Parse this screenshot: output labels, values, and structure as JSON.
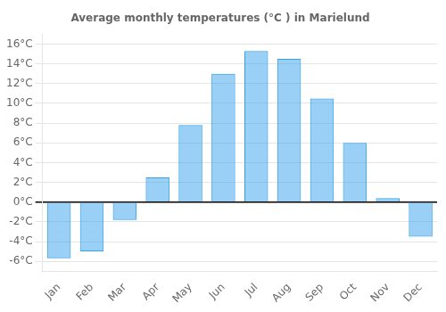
{
  "chart_data": {
    "type": "bar",
    "title": "Average monthly temperatures (°C ) in Marielund",
    "categories": [
      "Jan",
      "Feb",
      "Mar",
      "Apr",
      "May",
      "Jun",
      "Jul",
      "Aug",
      "Sep",
      "Oct",
      "Nov",
      "Dec"
    ],
    "values": [
      -5.7,
      -5.0,
      -1.8,
      2.5,
      7.8,
      13.0,
      15.3,
      14.5,
      10.5,
      6.0,
      0.4,
      -3.5
    ],
    "ylim": [
      -7,
      17
    ],
    "yticks": [
      {
        "value": -6,
        "label": "-6°C"
      },
      {
        "value": -4,
        "label": "-4°C"
      },
      {
        "value": -2,
        "label": "-2°C"
      },
      {
        "value": 0,
        "label": "0°C"
      },
      {
        "value": 2,
        "label": "2°C"
      },
      {
        "value": 4,
        "label": "4°C"
      },
      {
        "value": 6,
        "label": "6°C"
      },
      {
        "value": 8,
        "label": "8°C"
      },
      {
        "value": 10,
        "label": "10°C"
      },
      {
        "value": 12,
        "label": "12°C"
      },
      {
        "value": 14,
        "label": "14°C"
      },
      {
        "value": 16,
        "label": "16°C"
      }
    ],
    "grid": true
  }
}
